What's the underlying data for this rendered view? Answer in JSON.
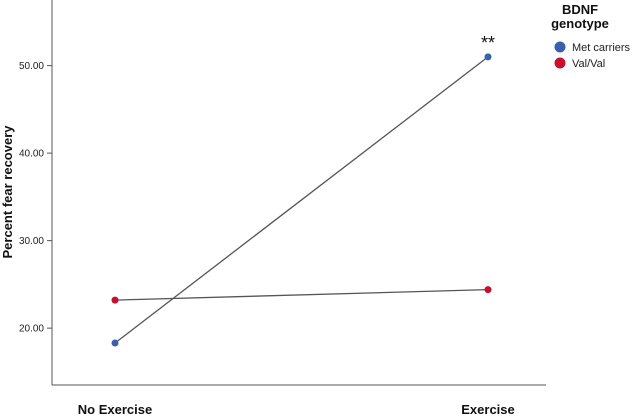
{
  "chart_data": {
    "type": "line",
    "title": "",
    "xlabel": "",
    "ylabel": "Percent fear recovery",
    "categories": [
      "No Exercise",
      "Exercise"
    ],
    "series": [
      {
        "name": "Met carriers",
        "color": "#3a5fad",
        "values": [
          18.3,
          51.0
        ]
      },
      {
        "name": "Val/Val",
        "color": "#c8102e",
        "values": [
          23.2,
          24.4
        ]
      }
    ],
    "y_ticks": [
      "20.00",
      "30.00",
      "40.00",
      "50.00"
    ],
    "y_tick_values": [
      20,
      30,
      40,
      50
    ],
    "ylim": [
      13.5,
      57.5
    ],
    "grid": false,
    "line_color": "#555555",
    "legend": {
      "title_line1": "BDNF",
      "title_line2": "genotype",
      "placement": "top-right"
    },
    "annotation": {
      "text": "**",
      "category": "Exercise",
      "value": 51.0
    }
  }
}
